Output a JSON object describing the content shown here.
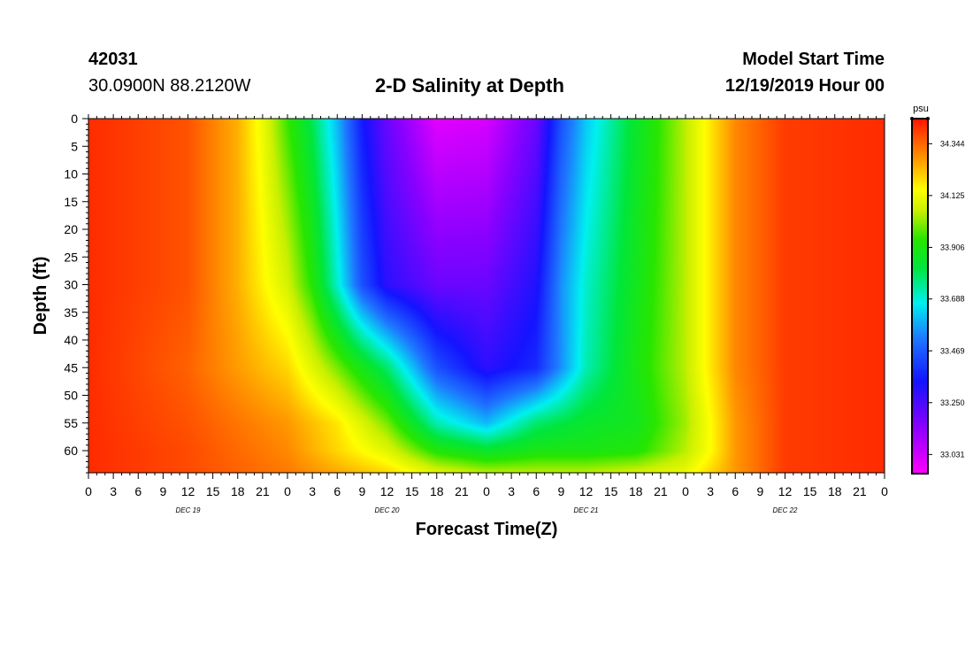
{
  "header": {
    "station_id": "42031",
    "coordinates": "30.0900N 88.2120W",
    "title": "2-D Salinity at Depth",
    "model_label": "Model Start Time",
    "model_time": "12/19/2019 Hour 00"
  },
  "chart_data": {
    "type": "heatmap",
    "title": "2-D Salinity at Depth",
    "xlabel": "Forecast Time(Z)",
    "ylabel": "Depth (ft)",
    "x_tick_labels": [
      "0",
      "3",
      "6",
      "9",
      "12",
      "15",
      "18",
      "21",
      "0",
      "3",
      "6",
      "9",
      "12",
      "15",
      "18",
      "21",
      "0",
      "3",
      "6",
      "9",
      "12",
      "15",
      "18",
      "21",
      "0",
      "3",
      "6",
      "9",
      "12",
      "15",
      "18",
      "21",
      "0"
    ],
    "x_day_labels": [
      "DEC 19",
      "DEC 20",
      "DEC 21",
      "DEC 22"
    ],
    "xlim_hours": [
      0,
      96
    ],
    "y_ticks": [
      0,
      5,
      10,
      15,
      20,
      25,
      30,
      35,
      40,
      45,
      50,
      55,
      60
    ],
    "ylim": [
      0,
      64
    ],
    "y_inverted": true,
    "colorbar": {
      "unit": "psu",
      "labels": [
        "34.344",
        "34.125",
        "33.906",
        "33.688",
        "33.469",
        "33.250",
        "33.031"
      ],
      "range": [
        32.95,
        34.45
      ]
    },
    "series": [
      {
        "depth": 0,
        "x": [
          0,
          12,
          18,
          21,
          24,
          27,
          30,
          33,
          36,
          42,
          48,
          54,
          57,
          60,
          66,
          72,
          75,
          78,
          84,
          96
        ],
        "values": [
          34.42,
          34.37,
          34.25,
          34.12,
          33.95,
          33.8,
          33.6,
          33.35,
          33.2,
          33.0,
          33.02,
          33.2,
          33.45,
          33.62,
          33.85,
          34.05,
          34.18,
          34.3,
          34.4,
          34.42
        ]
      },
      {
        "depth": 30,
        "x": [
          0,
          12,
          18,
          24,
          27,
          30,
          33,
          36,
          42,
          48,
          54,
          57,
          60,
          66,
          72,
          75,
          78,
          84,
          96
        ],
        "values": [
          34.42,
          34.37,
          34.25,
          34.08,
          33.93,
          33.7,
          33.45,
          33.3,
          33.2,
          33.2,
          33.32,
          33.55,
          33.7,
          33.88,
          34.05,
          34.18,
          34.3,
          34.4,
          34.42
        ]
      },
      {
        "depth": 45,
        "x": [
          0,
          12,
          24,
          30,
          36,
          42,
          48,
          54,
          57,
          60,
          66,
          72,
          75,
          78,
          84,
          96
        ],
        "values": [
          34.42,
          34.35,
          34.2,
          34.0,
          33.78,
          33.45,
          33.3,
          33.38,
          33.55,
          33.72,
          33.9,
          34.05,
          34.18,
          34.3,
          34.4,
          34.42
        ]
      },
      {
        "depth": 55,
        "x": [
          0,
          12,
          24,
          30,
          36,
          42,
          48,
          54,
          60,
          66,
          72,
          75,
          78,
          84,
          96
        ],
        "values": [
          34.42,
          34.37,
          34.28,
          34.18,
          34.0,
          33.72,
          33.6,
          33.78,
          33.85,
          33.88,
          34.03,
          34.15,
          34.28,
          34.4,
          34.42
        ]
      },
      {
        "depth": 60,
        "x": [
          0,
          12,
          24,
          36,
          42,
          48,
          54,
          60,
          66,
          72,
          75,
          78,
          84,
          96
        ],
        "values": [
          34.42,
          34.38,
          34.3,
          34.1,
          33.92,
          33.85,
          33.9,
          33.9,
          33.92,
          34.05,
          34.15,
          34.28,
          34.4,
          34.42
        ]
      },
      {
        "depth": 64,
        "x": [
          0,
          12,
          24,
          36,
          42,
          48,
          60,
          66,
          72,
          78,
          84,
          96
        ],
        "values": [
          34.42,
          34.38,
          34.32,
          34.2,
          34.1,
          34.05,
          34.05,
          34.08,
          34.12,
          34.28,
          34.4,
          34.42
        ]
      }
    ]
  }
}
